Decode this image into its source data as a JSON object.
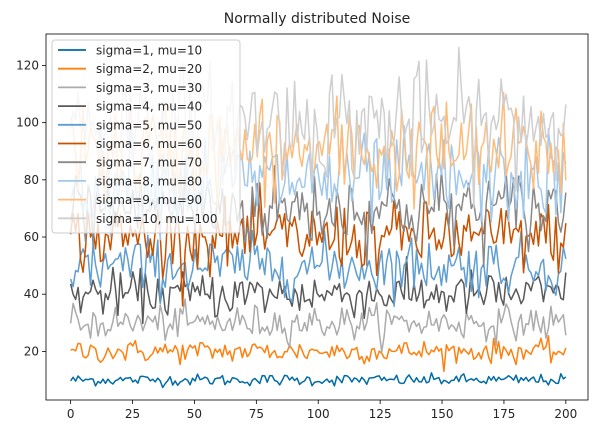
{
  "chart_data": {
    "type": "line",
    "title": "Normally distributed Noise",
    "xlabel": "",
    "ylabel": "",
    "xlim": [
      -9.95,
      208.95
    ],
    "ylim": [
      3,
      131
    ],
    "xticks": [
      0,
      25,
      50,
      75,
      100,
      125,
      150,
      175,
      200
    ],
    "yticks": [
      20,
      40,
      60,
      80,
      100,
      120
    ],
    "n_points": 200,
    "legend_position": "upper left",
    "grid": false,
    "series": [
      {
        "name": "sigma=1, mu=10",
        "mu": 10,
        "sigma": 1,
        "color": "#006ba4"
      },
      {
        "name": "sigma=2, mu=20",
        "mu": 20,
        "sigma": 2,
        "color": "#ff800e"
      },
      {
        "name": "sigma=3, mu=30",
        "mu": 30,
        "sigma": 3,
        "color": "#ababab"
      },
      {
        "name": "sigma=4, mu=40",
        "mu": 40,
        "sigma": 4,
        "color": "#595959"
      },
      {
        "name": "sigma=5, mu=50",
        "mu": 50,
        "sigma": 5,
        "color": "#5f9ed1"
      },
      {
        "name": "sigma=6, mu=60",
        "mu": 60,
        "sigma": 6,
        "color": "#c85200"
      },
      {
        "name": "sigma=7, mu=70",
        "mu": 70,
        "sigma": 7,
        "color": "#898989"
      },
      {
        "name": "sigma=8, mu=80",
        "mu": 80,
        "sigma": 8,
        "color": "#a2c8ec"
      },
      {
        "name": "sigma=9, mu=90",
        "mu": 90,
        "sigma": 9,
        "color": "#ffbc79"
      },
      {
        "name": "sigma=10, mu=100",
        "mu": 100,
        "sigma": 10,
        "color": "#cfcfcf"
      }
    ]
  }
}
